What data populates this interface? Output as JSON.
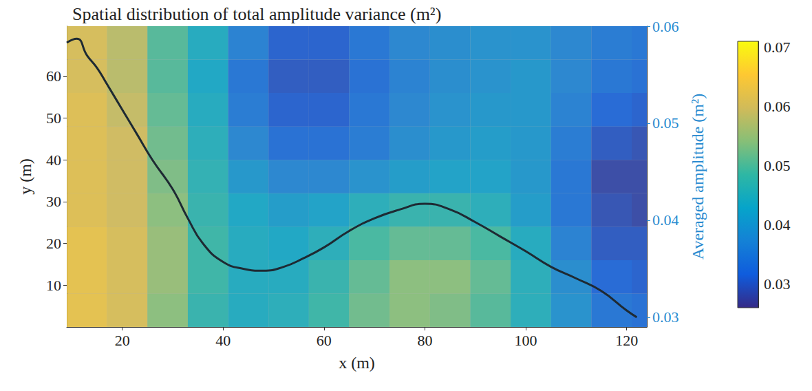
{
  "chart_data": {
    "type": "heatmap",
    "title": "Spatial distribution of total amplitude variance (m²)",
    "x_label": "x (m)",
    "y_label": "y (m)",
    "y2_label": "Averaged amplitude (m²)",
    "xlim": [
      9,
      124
    ],
    "xticks": [
      20,
      40,
      60,
      80,
      100,
      120
    ],
    "ylim": [
      0,
      72
    ],
    "yticks": [
      10,
      20,
      30,
      40,
      50,
      60
    ],
    "y2lim": [
      0.029,
      0.06
    ],
    "y2ticks": [
      0.03,
      0.04,
      0.05,
      0.06
    ],
    "grid": false,
    "heatmap": {
      "x": [
        13,
        21,
        29,
        37,
        45,
        53,
        61,
        69,
        77,
        85,
        93,
        101,
        109,
        117,
        125
      ],
      "y": [
        4,
        12,
        20,
        28,
        36,
        44,
        52,
        60,
        68
      ],
      "values": [
        [
          0.063,
          0.061,
          0.054,
          0.047,
          0.044,
          0.045,
          0.048,
          0.052,
          0.054,
          0.053,
          0.05,
          0.045,
          0.039,
          0.034,
          0.033
        ],
        [
          0.063,
          0.061,
          0.055,
          0.048,
          0.044,
          0.044,
          0.047,
          0.051,
          0.054,
          0.054,
          0.051,
          0.045,
          0.038,
          0.032,
          0.031
        ],
        [
          0.063,
          0.061,
          0.055,
          0.048,
          0.044,
          0.043,
          0.045,
          0.049,
          0.051,
          0.051,
          0.049,
          0.044,
          0.036,
          0.03,
          0.03
        ],
        [
          0.062,
          0.06,
          0.054,
          0.047,
          0.043,
          0.041,
          0.042,
          0.045,
          0.047,
          0.047,
          0.045,
          0.041,
          0.034,
          0.029,
          0.028
        ],
        [
          0.062,
          0.06,
          0.053,
          0.046,
          0.04,
          0.037,
          0.037,
          0.039,
          0.041,
          0.042,
          0.042,
          0.04,
          0.034,
          0.028,
          0.028
        ],
        [
          0.062,
          0.06,
          0.052,
          0.045,
          0.037,
          0.033,
          0.033,
          0.035,
          0.038,
          0.04,
          0.041,
          0.04,
          0.035,
          0.03,
          0.029
        ],
        [
          0.062,
          0.059,
          0.051,
          0.044,
          0.035,
          0.031,
          0.031,
          0.034,
          0.037,
          0.039,
          0.04,
          0.04,
          0.036,
          0.032,
          0.031
        ],
        [
          0.061,
          0.058,
          0.05,
          0.043,
          0.034,
          0.03,
          0.03,
          0.033,
          0.036,
          0.038,
          0.039,
          0.04,
          0.037,
          0.034,
          0.033
        ],
        [
          0.061,
          0.058,
          0.05,
          0.044,
          0.036,
          0.031,
          0.031,
          0.034,
          0.037,
          0.038,
          0.039,
          0.039,
          0.037,
          0.035,
          0.034
        ]
      ]
    },
    "colorbar": {
      "lim": [
        0.026,
        0.071
      ],
      "ticks": [
        0.03,
        0.04,
        0.05,
        0.06,
        0.07
      ],
      "colors": [
        "#352a87",
        "#0f5cdd",
        "#1481d6",
        "#06a4ca",
        "#2eb7a4",
        "#87bf77",
        "#d1bb59",
        "#fec832",
        "#f9fb0e"
      ]
    },
    "series": [
      {
        "type": "line",
        "axis": "y2",
        "color": "#1e2a33",
        "line_style": "solid",
        "x": [
          9,
          11,
          13,
          15,
          17,
          20,
          23,
          26,
          30,
          33,
          36,
          40,
          44,
          48,
          52,
          56,
          60,
          65,
          70,
          75,
          80,
          85,
          90,
          95,
          100,
          105,
          110,
          115,
          120,
          122
        ],
        "values": [
          0.0583,
          0.0587,
          0.057,
          0.0557,
          0.054,
          0.0514,
          0.0488,
          0.0462,
          0.0432,
          0.0402,
          0.0376,
          0.0357,
          0.035,
          0.0348,
          0.0352,
          0.0361,
          0.0372,
          0.0389,
          0.0402,
          0.0411,
          0.0417,
          0.0411,
          0.0398,
          0.0383,
          0.0368,
          0.0352,
          0.034,
          0.0327,
          0.0307,
          0.03
        ]
      }
    ]
  }
}
